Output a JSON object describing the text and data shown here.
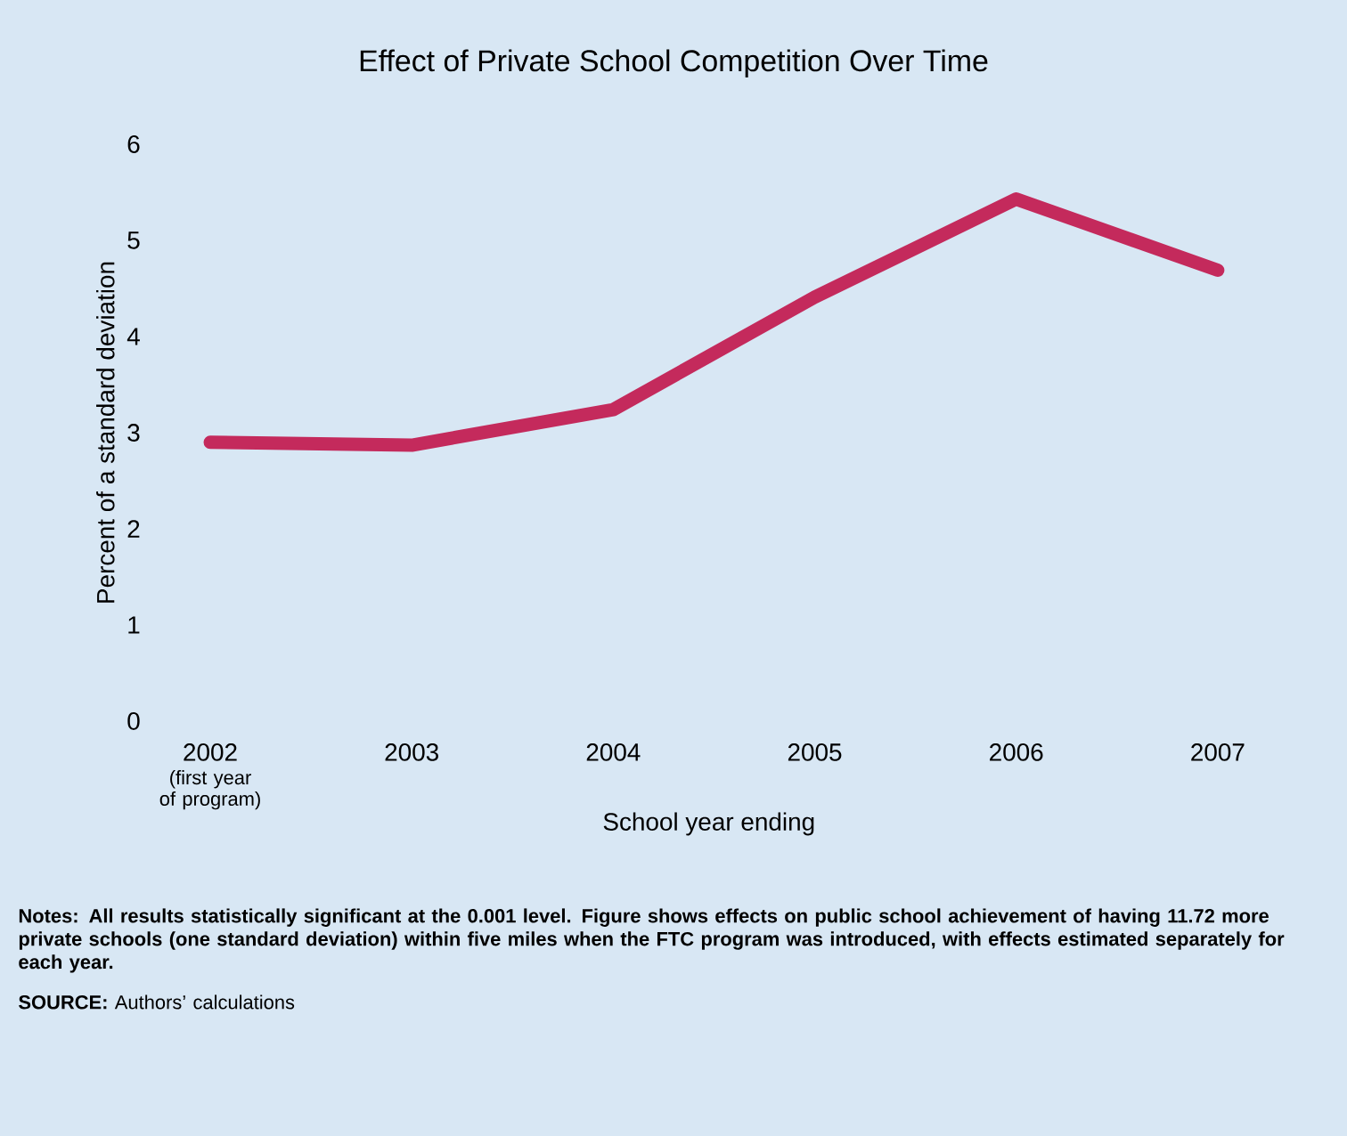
{
  "chart_data": {
    "type": "line",
    "title": "Effect of Private School Competition Over Time",
    "xlabel": "School year ending",
    "ylabel": "Percent of a standard deviation",
    "categories": [
      "2002",
      "2003",
      "2004",
      "2005",
      "2006",
      "2007"
    ],
    "series": [
      {
        "color": "#c42a5c",
        "values": [
          2.9,
          2.87,
          3.24,
          4.41,
          5.43,
          4.69
        ]
      }
    ],
    "ylim": [
      0,
      6
    ],
    "yticks": [
      0,
      1,
      2,
      3,
      4,
      5,
      6
    ],
    "grid": false,
    "marker": "none",
    "line_style": "solid",
    "annotations": [
      "(first year of program)",
      "**Notes:** **All results statistically significant at the 0.001 level. Figure shows effects on public school achievement of having 11.72 more private schools (one standard deviation) within five miles when the FTC program was introduced, with effects estimated separately for each year.**",
      "**SOURCE:** Authors’ calculations"
    ]
  }
}
